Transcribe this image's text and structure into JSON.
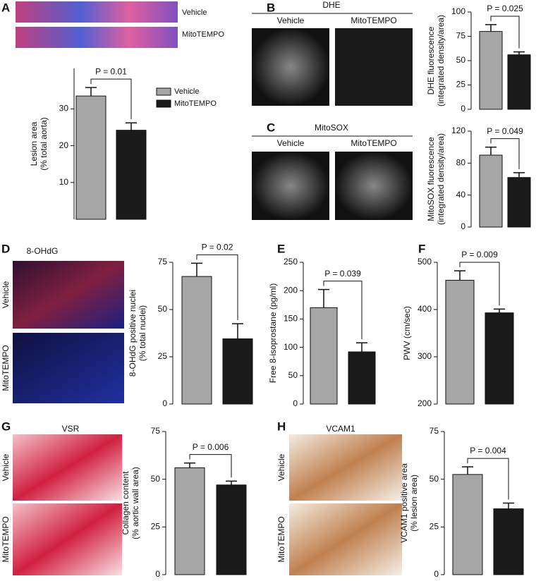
{
  "chart_data": [
    {
      "type": "bar",
      "panel": "A",
      "categories": [
        "Vehicle",
        "MitoTEMPO"
      ],
      "colors": [
        "#a6a6a6",
        "#1a1a1a"
      ],
      "values": [
        33.5,
        24.2
      ],
      "errors": [
        2.3,
        2
      ],
      "ylim": [
        0,
        41
      ],
      "yticks": [
        10,
        20,
        30
      ],
      "y_label": [
        "Lesion area",
        "(% total aorta)"
      ],
      "annotation": "P = 0.01"
    },
    {
      "type": "bar",
      "panel": "B",
      "categories": [
        null,
        null
      ],
      "colors": [
        "#a6a6a6",
        "#1a1a1a"
      ],
      "values": [
        80,
        56
      ],
      "errors": [
        7,
        3
      ],
      "ylim": [
        0,
        100
      ],
      "yticks": [
        0,
        25,
        50,
        75,
        100
      ],
      "y_label": [
        "DHE fluorescence",
        "(integrated density/area)"
      ],
      "annotation": "P = 0.025"
    },
    {
      "type": "bar",
      "panel": "C",
      "categories": [
        null,
        null
      ],
      "colors": [
        "#a6a6a6",
        "#1a1a1a"
      ],
      "values": [
        90,
        62
      ],
      "errors": [
        10,
        6
      ],
      "ylim": [
        0,
        120
      ],
      "yticks": [
        0,
        40,
        80,
        120
      ],
      "y_label": [
        "MitoSOX fluorescence",
        "(integrated density/area)"
      ],
      "annotation": "P = 0.049"
    },
    {
      "type": "bar",
      "panel": "D",
      "categories": [
        null,
        null
      ],
      "colors": [
        "#a6a6a6",
        "#1a1a1a"
      ],
      "values": [
        67.5,
        34.5
      ],
      "errors": [
        7,
        8
      ],
      "ylim": [
        0,
        75
      ],
      "yticks": [
        0,
        25,
        50,
        75
      ],
      "y_label": [
        "8-OHdG positive nuclei",
        "(% total nuclei)"
      ],
      "annotation": "P = 0.02"
    },
    {
      "type": "bar",
      "panel": "E",
      "categories": [
        null,
        null
      ],
      "colors": [
        "#a6a6a6",
        "#1a1a1a"
      ],
      "values": [
        170,
        92
      ],
      "errors": [
        32,
        16
      ],
      "ylim": [
        0,
        250
      ],
      "yticks": [
        0,
        50,
        100,
        150,
        200,
        250
      ],
      "y_label": [
        "Free 8-isoprostane (pg/ml)"
      ],
      "annotation": "P = 0.039"
    },
    {
      "type": "bar",
      "panel": "F",
      "categories": [
        null,
        null
      ],
      "colors": [
        "#a6a6a6",
        "#1a1a1a"
      ],
      "values": [
        462,
        393
      ],
      "errors": [
        20,
        8
      ],
      "ylim": [
        200,
        500
      ],
      "yticks": [
        200,
        300,
        400,
        500
      ],
      "y_label": [
        "PWV (cm/sec)"
      ],
      "annotation": "P = 0.009"
    },
    {
      "type": "bar",
      "panel": "G",
      "categories": [
        null,
        null
      ],
      "colors": [
        "#a6a6a6",
        "#1a1a1a"
      ],
      "values": [
        56,
        47
      ],
      "errors": [
        2.5,
        2
      ],
      "ylim": [
        0,
        75
      ],
      "yticks": [
        0,
        25,
        50,
        75
      ],
      "y_label": [
        "Collagen content",
        "(% aortic wall area)"
      ],
      "annotation": "P = 0.006"
    },
    {
      "type": "bar",
      "panel": "H",
      "categories": [
        null,
        null
      ],
      "colors": [
        "#a6a6a6",
        "#1a1a1a"
      ],
      "values": [
        52.5,
        34.5
      ],
      "errors": [
        4,
        3
      ],
      "ylim": [
        0,
        75
      ],
      "yticks": [
        0,
        25,
        50,
        75
      ],
      "y_label": [
        "VCAM1 positive area",
        "(% lesion area)"
      ],
      "annotation": "P = 0.004"
    }
  ],
  "images": [
    {
      "labels": [
        "Vehicle",
        "MitoTEMPO"
      ]
    },
    {
      "title": "DHE",
      "labels": [
        "Vehicle",
        "MitoTEMPO"
      ]
    },
    {
      "title": "MitoSOX",
      "labels": [
        "Vehicle",
        "MitoTEMPO"
      ]
    },
    {
      "title": "8-OHdG",
      "labels": [
        "Vehicle",
        "MitoTEMPO"
      ]
    },
    {
      "title": "VSR",
      "labels": [
        "Vehicle",
        "MitoTEMPO"
      ]
    },
    {
      "title": "VCAM1",
      "labels": [
        "Vehicle",
        "MitoTEMPO"
      ]
    }
  ]
}
